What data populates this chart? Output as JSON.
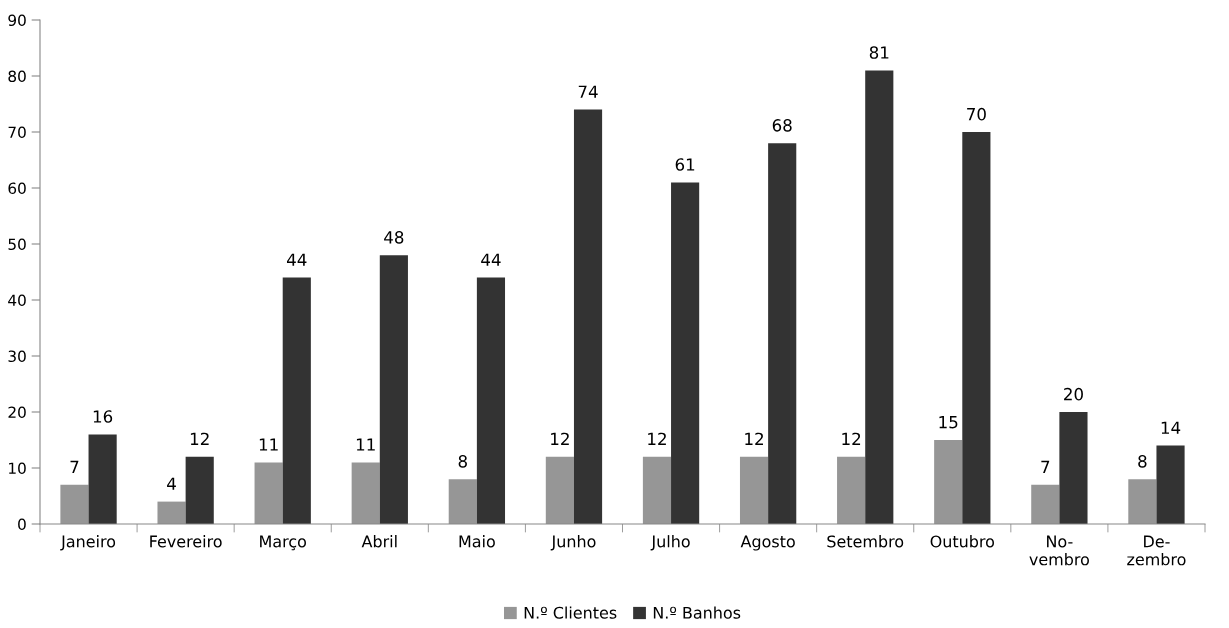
{
  "chart_data": {
    "type": "bar",
    "categories": [
      "Janeiro",
      "Fevereiro",
      "Março",
      "Abril",
      "Maio",
      "Junho",
      "Julho",
      "Agosto",
      "Setembro",
      "Outubro",
      "No-\nvembro",
      "De-\nzembro"
    ],
    "series": [
      {
        "name": "N.º Clientes",
        "color": "#969696",
        "values": [
          7,
          4,
          11,
          11,
          8,
          12,
          12,
          12,
          12,
          15,
          7,
          8
        ]
      },
      {
        "name": "N.º Banhos",
        "color": "#333333",
        "values": [
          16,
          12,
          44,
          48,
          44,
          74,
          61,
          68,
          81,
          70,
          20,
          14
        ]
      }
    ],
    "ylim": [
      0,
      90
    ],
    "yticks": [
      0,
      10,
      20,
      30,
      40,
      50,
      60,
      70,
      80,
      90
    ],
    "grid": false,
    "legend": "bottom",
    "data_labels": true
  }
}
